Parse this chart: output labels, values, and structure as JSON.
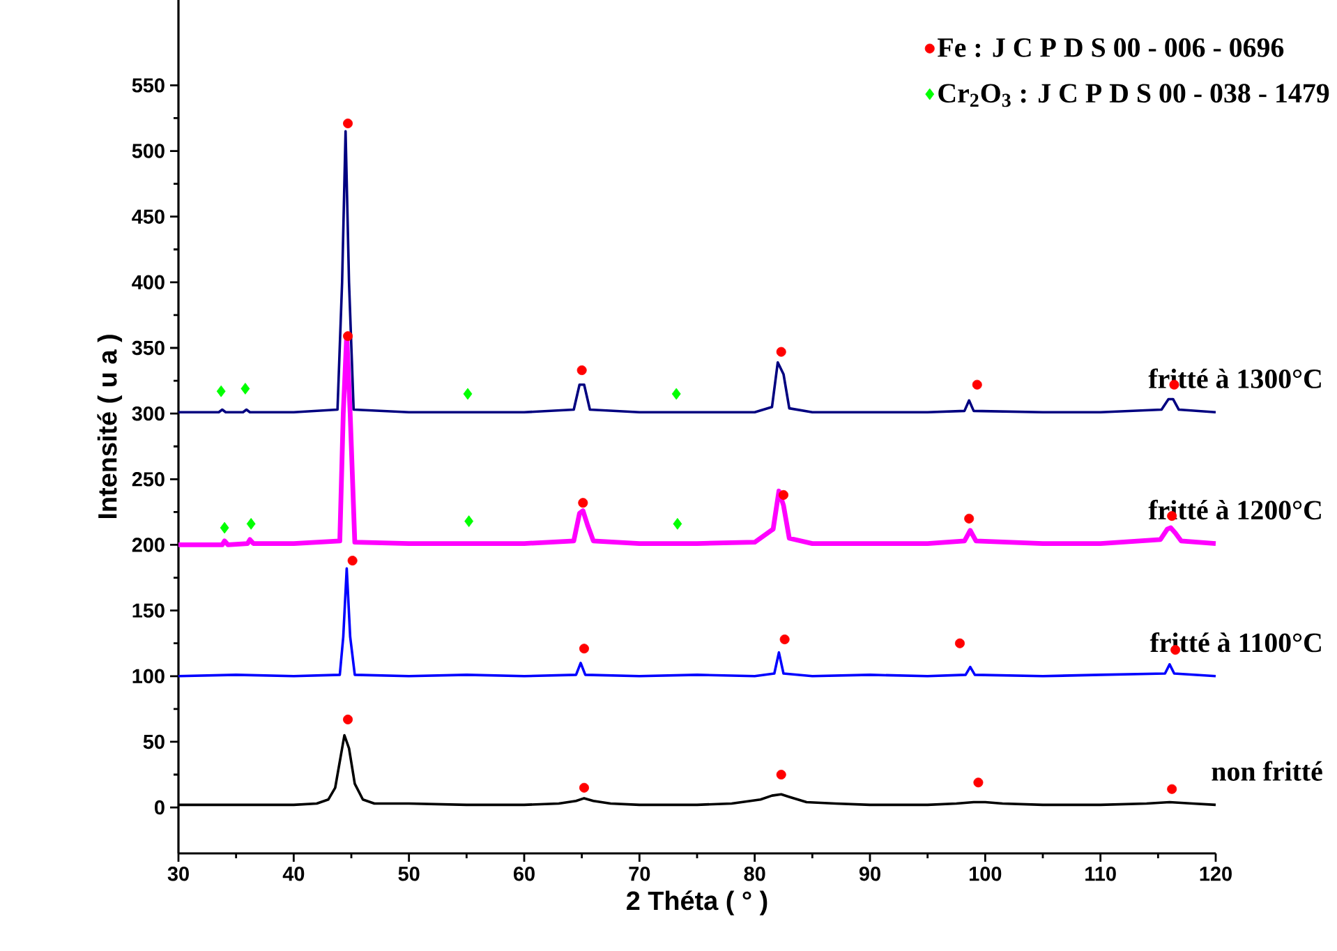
{
  "chart_data": {
    "type": "line",
    "xlabel": "2 Théta ( ° )",
    "ylabel": "Intensité ( u a )",
    "xlim": [
      30,
      120
    ],
    "ylim": [
      -35,
      615
    ],
    "xticks": [
      30,
      40,
      50,
      60,
      70,
      80,
      90,
      100,
      110,
      120
    ],
    "yticks": [
      0,
      50,
      100,
      150,
      200,
      250,
      300,
      350,
      400,
      450,
      500,
      550
    ],
    "legend": "top right",
    "series": [
      {
        "name": "non fritté",
        "color": "#000000",
        "x": [
          30,
          35,
          40,
          42,
          43,
          43.6,
          44,
          44.4,
          44.8,
          45.3,
          46,
          47,
          50,
          55,
          60,
          63,
          64.5,
          65.2,
          66,
          67.5,
          70,
          75,
          78,
          80.5,
          81.5,
          82.3,
          83,
          84.5,
          87,
          90,
          95,
          97.5,
          99,
          100,
          101.5,
          105,
          110,
          114,
          116,
          118,
          120
        ],
        "values": [
          2,
          2,
          2,
          3,
          6,
          15,
          35,
          55,
          45,
          18,
          6,
          3,
          3,
          2,
          2,
          3,
          5,
          7,
          5,
          3,
          2,
          2,
          3,
          6,
          9,
          10,
          8,
          4,
          3,
          2,
          2,
          3,
          4,
          4,
          3,
          2,
          2,
          3,
          4,
          3,
          2
        ]
      },
      {
        "name": "fritté à 1100°C",
        "color": "#0000ff",
        "x": [
          30,
          35,
          40,
          44,
          44.3,
          44.6,
          44.9,
          45.3,
          50,
          55,
          60,
          64.5,
          64.9,
          65.3,
          70,
          75,
          80,
          81.7,
          82.1,
          82.5,
          85,
          90,
          95,
          98.3,
          98.7,
          99.1,
          105,
          110,
          115.6,
          116,
          116.4,
          120
        ],
        "values": [
          100,
          101,
          100,
          101,
          130,
          182,
          130,
          101,
          100,
          101,
          100,
          101,
          110,
          101,
          100,
          101,
          100,
          102,
          118,
          102,
          100,
          101,
          100,
          101,
          107,
          101,
          100,
          101,
          102,
          109,
          102,
          100
        ]
      },
      {
        "name": "fritté à 1200°C",
        "color": "#ff00ff",
        "x": [
          30,
          33.8,
          34.0,
          34.3,
          36,
          36.2,
          36.5,
          40,
          44,
          44.3,
          44.6,
          44.9,
          45.3,
          50,
          55,
          60,
          64.3,
          64.8,
          65.1,
          65.5,
          66,
          70,
          75,
          80,
          81.6,
          82.1,
          82.5,
          83,
          85,
          90,
          95,
          98.2,
          98.7,
          99.2,
          105,
          110,
          115.2,
          115.8,
          116.1,
          116.5,
          117,
          120
        ],
        "values": [
          200,
          200,
          203,
          200,
          201,
          204,
          201,
          201,
          203,
          300,
          360,
          300,
          202,
          201,
          201,
          201,
          203,
          224,
          226,
          215,
          203,
          201,
          201,
          202,
          212,
          241,
          230,
          205,
          201,
          201,
          201,
          203,
          211,
          203,
          201,
          201,
          204,
          212,
          213,
          209,
          203,
          201
        ]
      },
      {
        "name": "fritté à 1300°C",
        "color": "#000080",
        "x": [
          30,
          33.5,
          33.8,
          34.1,
          35.6,
          35.9,
          36.2,
          40,
          43.8,
          44.2,
          44.5,
          44.8,
          45.2,
          50,
          55,
          60,
          64.3,
          64.8,
          65.2,
          65.7,
          70,
          75,
          80,
          81.5,
          82,
          82.5,
          83,
          85,
          90,
          95,
          98.2,
          98.6,
          99,
          105,
          110,
          115.3,
          115.9,
          116.3,
          116.8,
          120
        ],
        "values": [
          301,
          301,
          303,
          301,
          301,
          303,
          301,
          301,
          303,
          400,
          515,
          400,
          303,
          301,
          301,
          301,
          303,
          322,
          322,
          303,
          301,
          301,
          301,
          305,
          339,
          330,
          304,
          301,
          301,
          301,
          302,
          310,
          302,
          301,
          301,
          303,
          311,
          311,
          303,
          301
        ]
      },
      {
        "name": "Fe : J C P D S 00 - 006 - 0696",
        "type": "scatter",
        "marker": "circle",
        "color": "#ff0000",
        "x": [
          44.7,
          44.7,
          65,
          82.3,
          99.3,
          116.4,
          65.1,
          82.5,
          98.6,
          116.2,
          45.1,
          65.2,
          82.6,
          97.8,
          116.5,
          44.7,
          65.2,
          82.3,
          99.4,
          116.2
        ],
        "values": [
          521,
          359,
          333,
          347,
          322,
          322,
          232,
          238,
          220,
          222,
          188,
          121,
          128,
          125,
          120,
          67,
          15,
          25,
          19,
          14
        ]
      },
      {
        "name": "Cr$_{2}$O$_{3}$ : J C P D S 00 - 038 - 1479",
        "type": "scatter",
        "marker": "diamond",
        "color": "#00ff00",
        "x": [
          33.7,
          35.8,
          55.1,
          73.2,
          34,
          36.3,
          55.2,
          73.3
        ],
        "values": [
          317,
          319,
          315,
          315,
          213,
          216,
          218,
          216
        ]
      }
    ]
  }
}
